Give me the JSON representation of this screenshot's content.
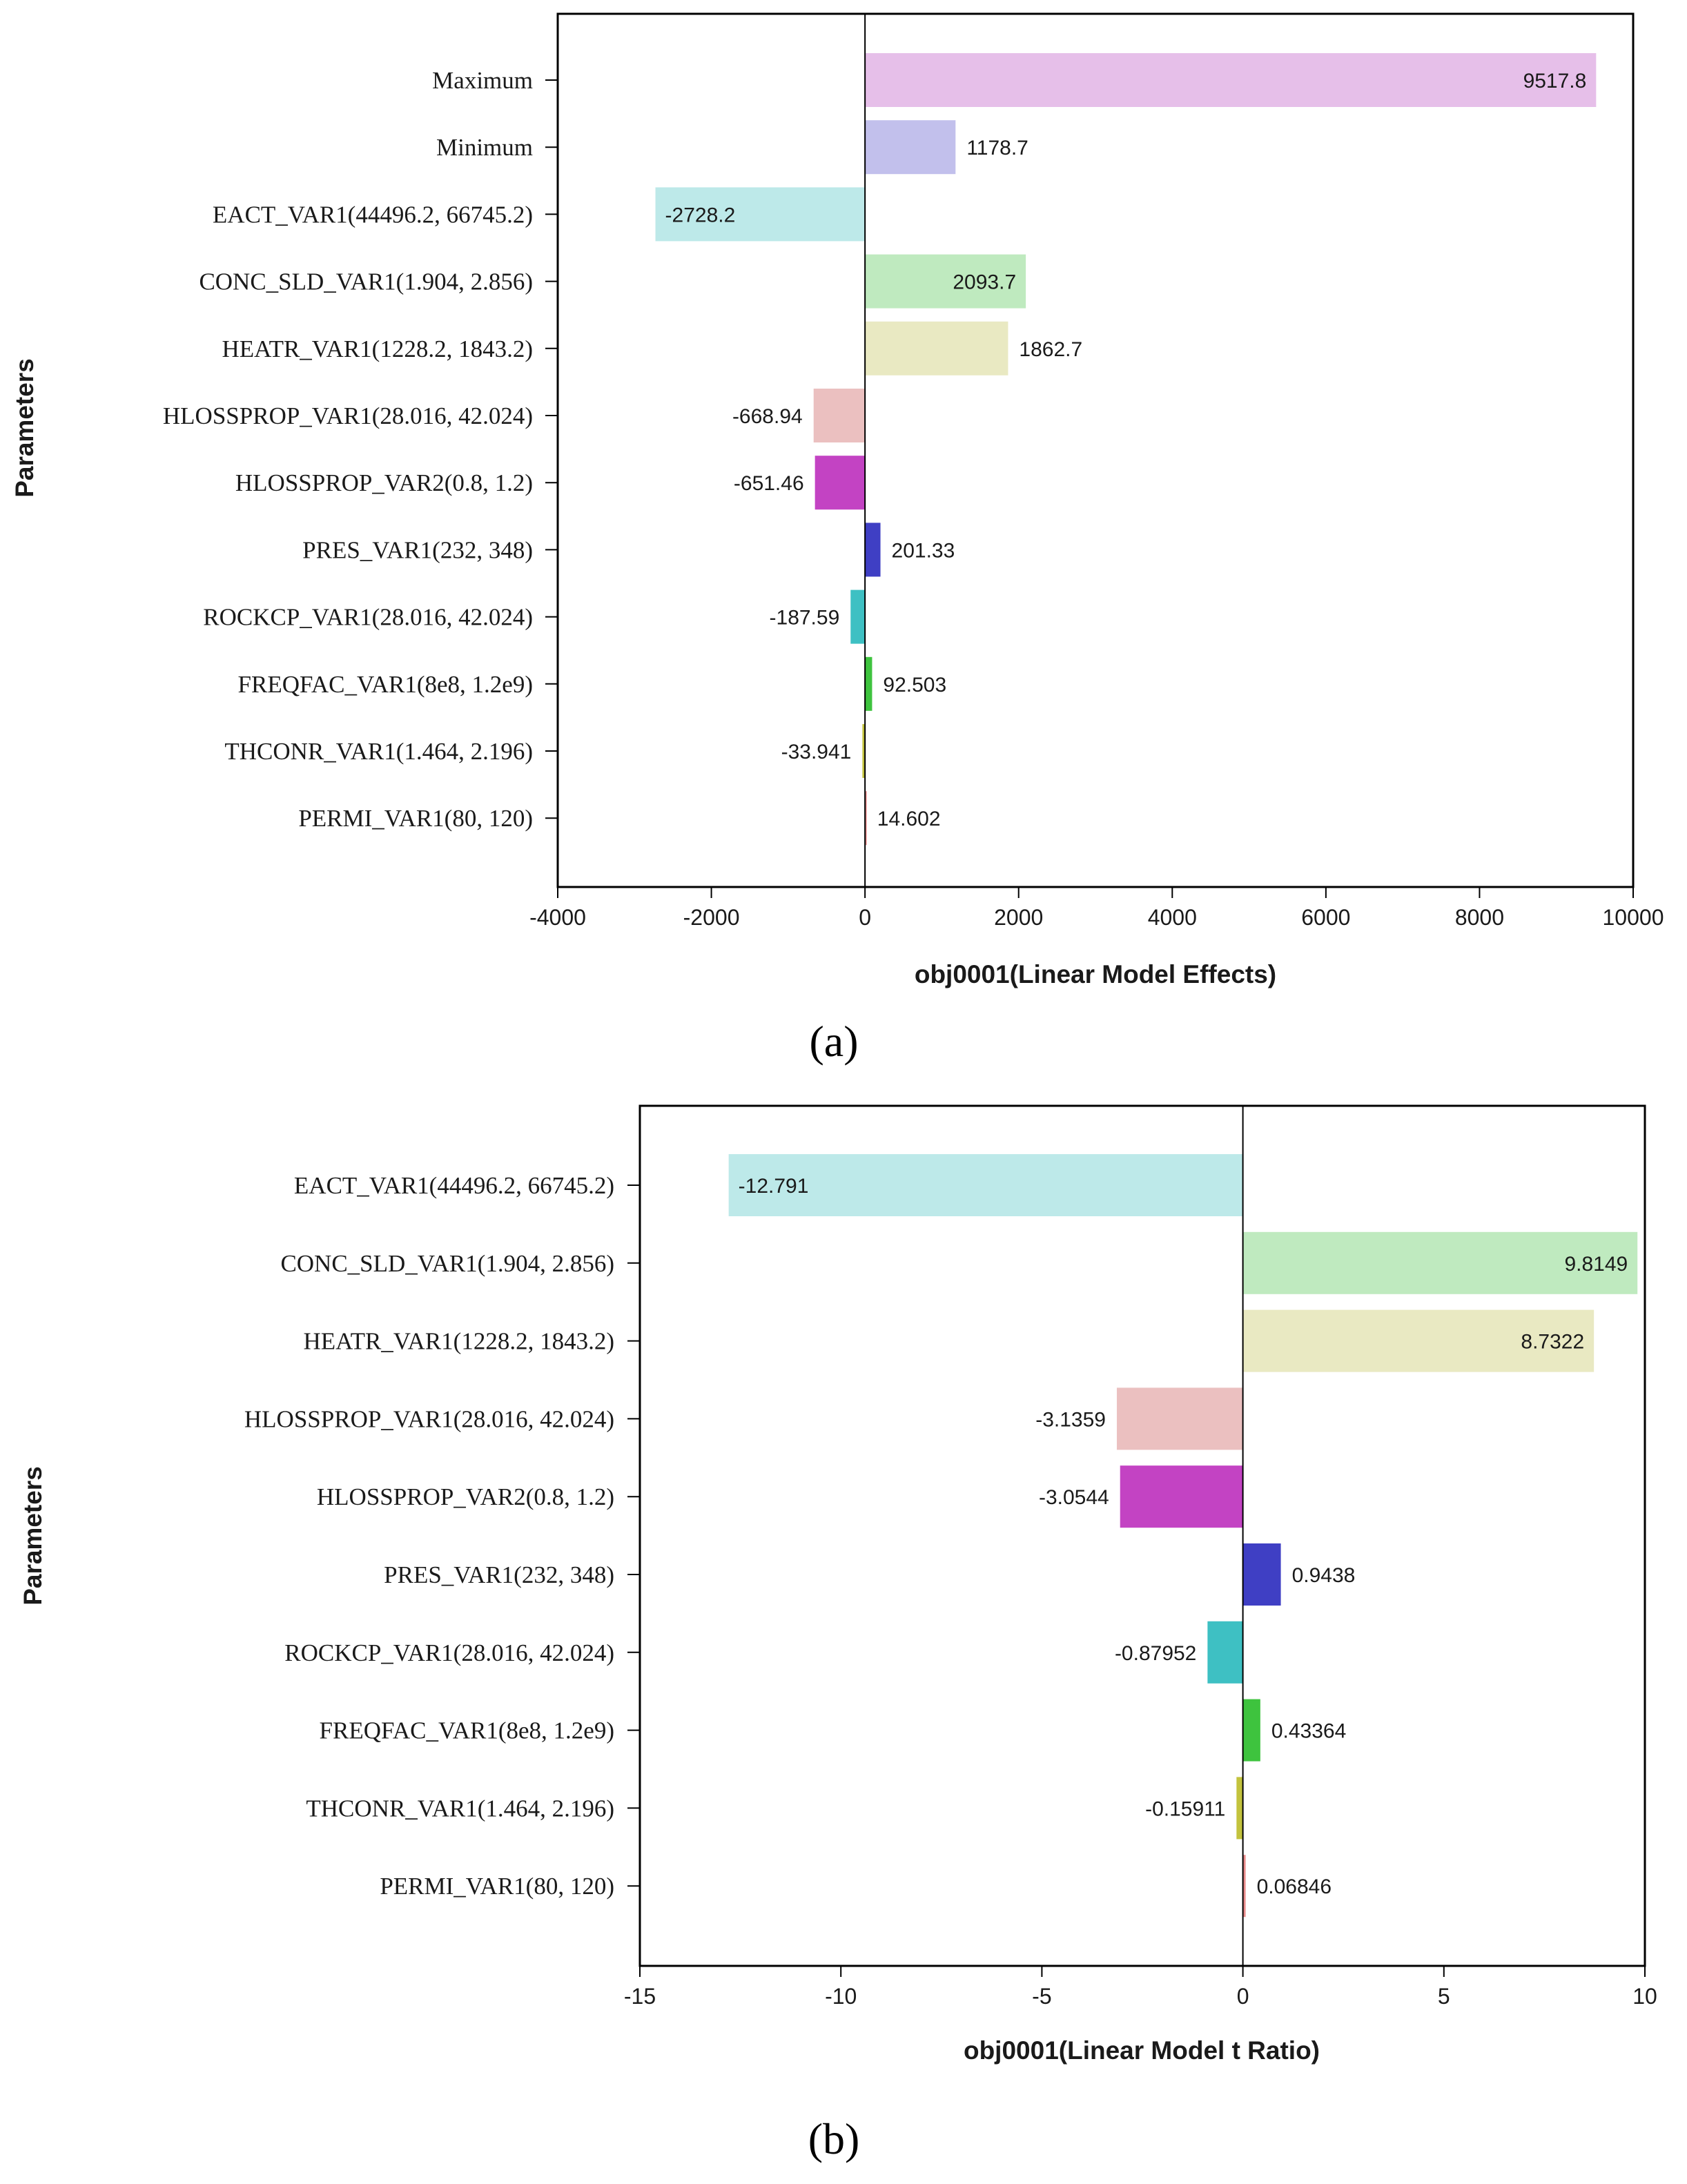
{
  "chart_data": [
    {
      "type": "bar",
      "orientation": "horizontal",
      "panel_label": "a",
      "xlabel": "obj0001(Linear Model Effects)",
      "ylabel": "Parameters",
      "xlim": [
        -4000,
        10000
      ],
      "xticks": [
        -4000,
        -2000,
        0,
        2000,
        4000,
        6000,
        8000,
        10000
      ],
      "xtick_labels": [
        "-4000",
        "-2000",
        "0",
        "2000",
        "4000",
        "6000",
        "8000",
        "10000"
      ],
      "grid": false,
      "categories": [
        "Maximum",
        "Minimum",
        "EACT_VAR1(44496.2, 66745.2)",
        "CONC_SLD_VAR1(1.904, 2.856)",
        "HEATR_VAR1(1228.2, 1843.2)",
        "HLOSSPROP_VAR1(28.016, 42.024)",
        "HLOSSPROP_VAR2(0.8, 1.2)",
        "PRES_VAR1(232, 348)",
        "ROCKCP_VAR1(28.016, 42.024)",
        "FREQFAC_VAR1(8e8, 1.2e9)",
        "THCONR_VAR1(1.464, 2.196)",
        "PERMI_VAR1(80, 120)"
      ],
      "values": [
        9517.8,
        1178.7,
        -2728.2,
        2093.7,
        1862.7,
        -668.94,
        -651.46,
        201.33,
        -187.59,
        92.503,
        -33.941,
        14.602
      ],
      "value_labels": [
        "9517.8",
        "1178.7",
        "-2728.2",
        "2093.7",
        "1862.7",
        "-668.94",
        "-651.46",
        "201.33",
        "-187.59",
        "92.503",
        "-33.941",
        "14.602"
      ],
      "colors": [
        "#e6bfe9",
        "#c2c0ec",
        "#bde9e9",
        "#bfeabf",
        "#e9e9c2",
        "#ebc0c0",
        "#c343c3",
        "#3f3fc4",
        "#3ec0c3",
        "#3ec33e",
        "#c3c33e",
        "#e98c8c"
      ]
    },
    {
      "type": "bar",
      "orientation": "horizontal",
      "panel_label": "b",
      "xlabel": "obj0001(Linear Model t Ratio)",
      "ylabel": "Parameters",
      "xlim": [
        -15,
        10
      ],
      "xticks": [
        -15,
        -10,
        -5,
        0,
        5,
        10
      ],
      "xtick_labels": [
        "-15",
        "-10",
        "-5",
        "0",
        "5",
        "10"
      ],
      "grid": false,
      "categories": [
        "EACT_VAR1(44496.2, 66745.2)",
        "CONC_SLD_VAR1(1.904, 2.856)",
        "HEATR_VAR1(1228.2, 1843.2)",
        "HLOSSPROP_VAR1(28.016, 42.024)",
        "HLOSSPROP_VAR2(0.8, 1.2)",
        "PRES_VAR1(232, 348)",
        "ROCKCP_VAR1(28.016, 42.024)",
        "FREQFAC_VAR1(8e8, 1.2e9)",
        "THCONR_VAR1(1.464, 2.196)",
        "PERMI_VAR1(80, 120)"
      ],
      "values": [
        -12.791,
        9.8149,
        8.7322,
        -3.1359,
        -3.0544,
        0.9438,
        -0.87952,
        0.43364,
        -0.15911,
        0.06846
      ],
      "value_labels": [
        "-12.791",
        "9.8149",
        "8.7322",
        "-3.1359",
        "-3.0544",
        "0.9438",
        "-0.87952",
        "0.43364",
        "-0.15911",
        "0.06846"
      ],
      "colors": [
        "#bde9e9",
        "#bfeabf",
        "#e9e9c2",
        "#ebc0c0",
        "#c343c3",
        "#3f3fc4",
        "#3ec0c3",
        "#3ec33e",
        "#c3c33e",
        "#e98c8c"
      ]
    }
  ]
}
